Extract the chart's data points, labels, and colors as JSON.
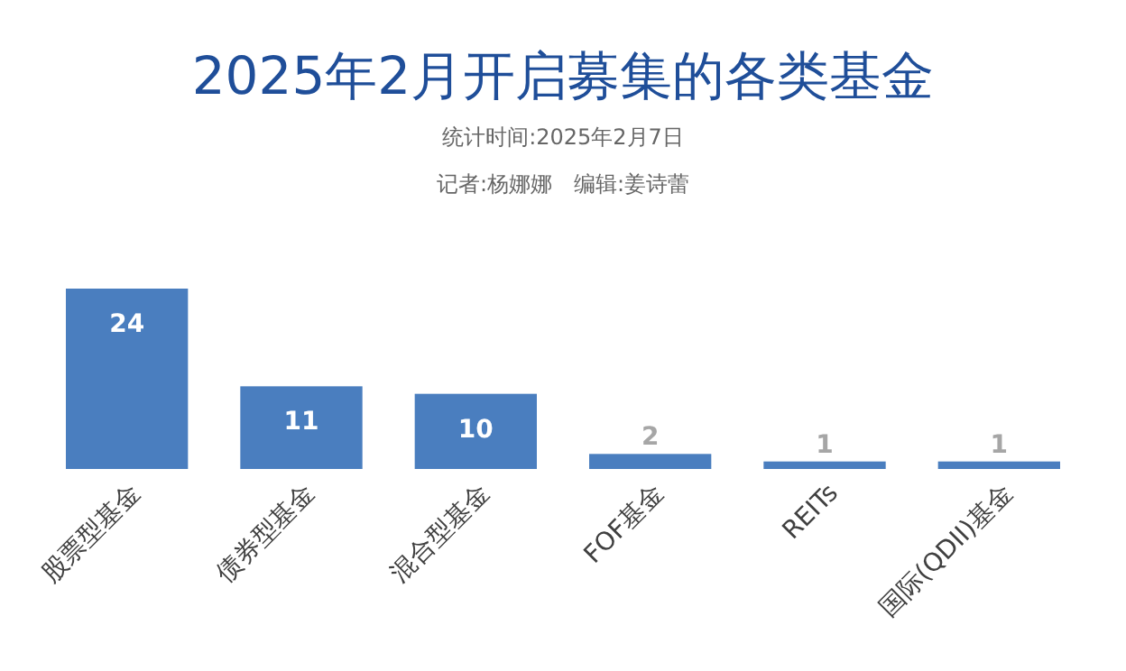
{
  "chart_data": {
    "type": "bar",
    "title": "2025年2月开启募集的各类基金",
    "subtitle": "统计时间:2025年2月7日",
    "annotations": [
      "记者:杨娜娜　编辑:姜诗蕾"
    ],
    "categories": [
      "股票型基金",
      "债券型基金",
      "混合型基金",
      "FOF基金",
      "REITs",
      "国际(QDII)基金"
    ],
    "values": [
      24,
      11,
      10,
      2,
      1,
      1
    ],
    "color": "#4a7ebf",
    "data_labels": true
  }
}
